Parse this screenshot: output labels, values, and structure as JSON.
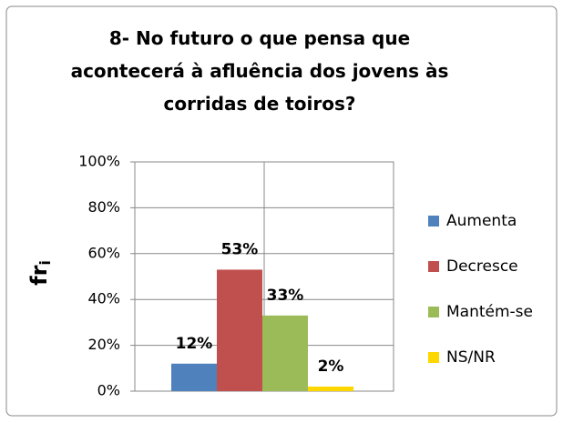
{
  "chart_data": {
    "type": "bar",
    "title": "8- No futuro o que pensa que acontecerá à afluência dos jovens às corridas de toiros?",
    "y_label": "fr",
    "y_label_subscript": "i",
    "series": [
      {
        "name": "Aumenta",
        "color": "#4f81bd",
        "values": [
          12
        ],
        "value_labels": [
          "12%"
        ]
      },
      {
        "name": "Decresce",
        "color": "#c0504d",
        "values": [
          53
        ],
        "value_labels": [
          "53%"
        ]
      },
      {
        "name": "Mantém-se",
        "color": "#9bbb59",
        "values": [
          33
        ],
        "value_labels": [
          "33%"
        ]
      },
      {
        "name": "NS/NR",
        "color": "#ffd700",
        "values": [
          2
        ],
        "value_labels": [
          "2%"
        ]
      }
    ],
    "ylim": [
      0,
      100
    ],
    "yticks": [
      {
        "value": 0,
        "label": "0%"
      },
      {
        "value": 20,
        "label": "20%"
      },
      {
        "value": 40,
        "label": "40%"
      },
      {
        "value": 60,
        "label": "60%"
      },
      {
        "value": 80,
        "label": "80%"
      },
      {
        "value": 100,
        "label": "100%"
      }
    ],
    "grid": true,
    "legend": "right"
  }
}
